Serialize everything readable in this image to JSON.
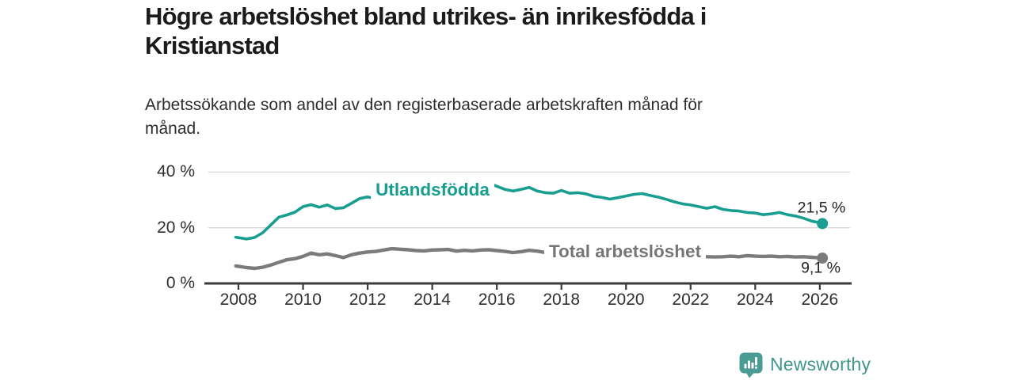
{
  "header": {
    "title_lines": [
      "Högre arbetslöshet bland utrikes- än inrikesfödda i",
      "Kristianstad"
    ],
    "subtitle_lines": [
      "Arbetssökande som andel av den registerbaserade arbetskraften månad för",
      "månad."
    ]
  },
  "footer": {
    "brand": "Newsworthy",
    "logo_icon": "bar-chart-speech-bubble-icon"
  },
  "colors": {
    "accent_teal": "#179e91",
    "series_gray": "#7b7b7b",
    "logo_teal": "#4a9b93",
    "axis": "#3a3a3a",
    "gridline": "#d8d8d8",
    "text_dark": "#222222"
  },
  "chart_data": {
    "type": "line",
    "title": "Högre arbetslöshet bland utrikes- än inrikesfödda i Kristianstad",
    "subtitle": "Arbetssökande som andel av den registerbaserade arbetskraften månad för månad.",
    "legend_position": "inline-labels-on-lines",
    "x_axis": {
      "ticks": [
        2008,
        2010,
        2012,
        2014,
        2016,
        2018,
        2020,
        2022,
        2024,
        2026
      ],
      "tick_labels": [
        "2008",
        "2010",
        "2012",
        "2014",
        "2016",
        "2018",
        "2020",
        "2022",
        "2024",
        "2026"
      ],
      "range": [
        2007.9,
        2027.0
      ]
    },
    "y_axis": {
      "ticks": [
        0,
        20,
        40
      ],
      "tick_labels": [
        "0 %",
        "20 %",
        "40 %"
      ],
      "range": [
        0,
        42
      ],
      "grid": true
    },
    "x": [
      2007.92,
      2008.25,
      2008.5,
      2008.75,
      2009,
      2009.25,
      2009.5,
      2009.75,
      2010,
      2010.25,
      2010.5,
      2010.75,
      2011,
      2011.25,
      2011.5,
      2011.75,
      2012,
      2012.25,
      2012.5,
      2012.75,
      2013,
      2013.25,
      2013.5,
      2013.75,
      2014,
      2014.25,
      2014.5,
      2014.75,
      2015,
      2015.25,
      2015.5,
      2015.75,
      2016,
      2016.25,
      2016.5,
      2016.75,
      2017,
      2017.25,
      2017.5,
      2017.75,
      2018,
      2018.25,
      2018.5,
      2018.75,
      2019,
      2019.25,
      2019.5,
      2019.75,
      2020,
      2020.25,
      2020.5,
      2020.75,
      2021,
      2021.25,
      2021.5,
      2021.75,
      2022,
      2022.25,
      2022.5,
      2022.75,
      2023,
      2023.25,
      2023.5,
      2023.75,
      2024,
      2024.25,
      2024.5,
      2024.75,
      2025,
      2025.25,
      2025.5,
      2025.75,
      2026,
      2026.08
    ],
    "series": [
      {
        "name": "Utlandsfödda",
        "color": "#179e91",
        "end_label": "21,5 %",
        "end_value": 21.5,
        "values": [
          16.6,
          16.0,
          16.5,
          18.2,
          21.0,
          23.8,
          24.6,
          25.6,
          27.6,
          28.3,
          27.4,
          28.2,
          26.9,
          27.2,
          28.8,
          30.5,
          31.1,
          30.4,
          30.9,
          31.4,
          31.9,
          32.3,
          32.7,
          33.1,
          33.5,
          33.9,
          34.3,
          34.7,
          35.1,
          35.4,
          35.7,
          36.2,
          34.9,
          33.8,
          33.2,
          33.8,
          34.5,
          33.2,
          32.6,
          32.4,
          33.4,
          32.4,
          32.6,
          32.2,
          31.3,
          30.9,
          30.3,
          30.8,
          31.4,
          32.0,
          32.3,
          31.6,
          31.0,
          30.2,
          29.3,
          28.6,
          28.2,
          27.6,
          27.0,
          27.6,
          26.6,
          26.2,
          26.0,
          25.5,
          25.3,
          24.7,
          25.0,
          25.5,
          24.7,
          24.2,
          23.4,
          22.4,
          21.8,
          21.5
        ]
      },
      {
        "name": "Total arbetslöshet",
        "color": "#7b7b7b",
        "end_label": "9,1 %",
        "end_value": 9.1,
        "values": [
          6.3,
          5.7,
          5.4,
          5.8,
          6.6,
          7.6,
          8.5,
          8.9,
          9.7,
          10.9,
          10.3,
          10.6,
          10.0,
          9.3,
          10.3,
          10.9,
          11.3,
          11.5,
          12.0,
          12.5,
          12.3,
          12.1,
          11.8,
          11.7,
          12.0,
          12.1,
          12.2,
          11.6,
          11.9,
          11.7,
          12.0,
          12.1,
          11.8,
          11.5,
          11.1,
          11.4,
          11.9,
          11.6,
          11.1,
          10.9,
          10.7,
          10.5,
          10.3,
          10.2,
          10.0,
          9.9,
          9.8,
          9.9,
          10.3,
          10.8,
          11.0,
          10.7,
          10.5,
          10.3,
          10.1,
          9.9,
          9.8,
          9.7,
          9.6,
          9.5,
          9.6,
          9.8,
          9.6,
          10.0,
          9.8,
          9.7,
          9.8,
          9.6,
          9.7,
          9.5,
          9.6,
          9.4,
          9.2,
          9.1
        ]
      }
    ]
  }
}
